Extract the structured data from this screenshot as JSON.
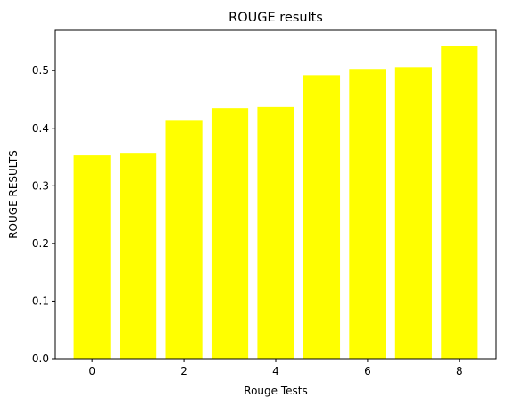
{
  "chart_data": {
    "type": "bar",
    "title": "ROUGE results",
    "xlabel": "Rouge Tests",
    "ylabel": "ROUGE RESULTS",
    "x": [
      0,
      1,
      2,
      3,
      4,
      5,
      6,
      7,
      8
    ],
    "values": [
      0.353,
      0.356,
      0.413,
      0.435,
      0.437,
      0.492,
      0.503,
      0.506,
      0.543
    ],
    "bar_color": "#ffff00",
    "xlim": [
      -0.8,
      8.8
    ],
    "ylim": [
      0,
      0.57
    ],
    "xticks": [
      0,
      2,
      4,
      6,
      8
    ],
    "xtick_labels": [
      "0",
      "2",
      "4",
      "6",
      "8"
    ],
    "yticks": [
      0.0,
      0.1,
      0.2,
      0.3,
      0.4,
      0.5
    ],
    "ytick_labels": [
      "0.0",
      "0.1",
      "0.2",
      "0.3",
      "0.4",
      "0.5"
    ],
    "grid": false,
    "legend": "none"
  }
}
